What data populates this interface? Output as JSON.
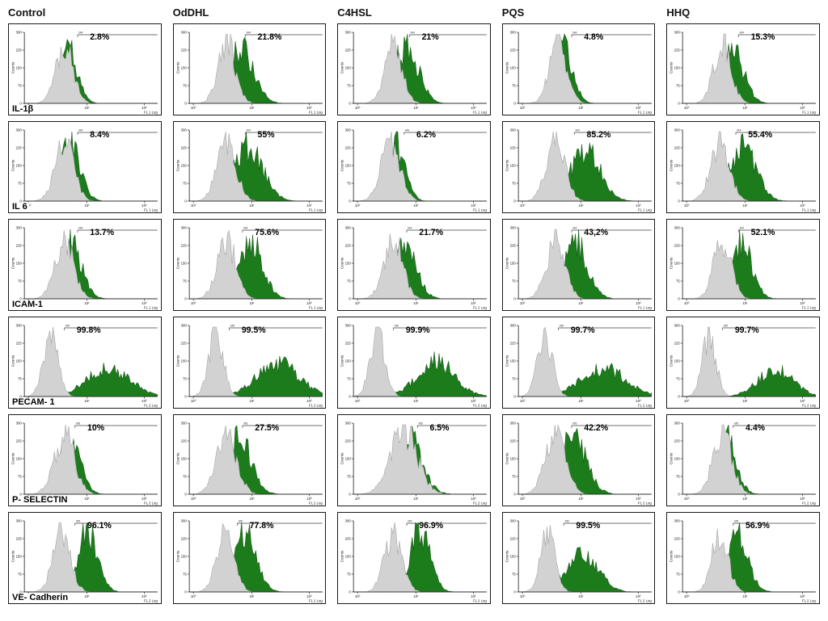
{
  "columns": [
    "Control",
    "OdDHL",
    "C4HSL",
    "PQS",
    "HHQ"
  ],
  "colors": {
    "green_fill": "#1c7c1c",
    "green_stroke": "#0d4f0d",
    "gray_fill": "#d2d2d2",
    "gray_stroke": "#9a9a9a",
    "axis": "#111111",
    "gate": "#444444",
    "panel_border": "#1a1a1a"
  },
  "axes": {
    "ylabel": "Counts",
    "yticks": [
      "300",
      "225",
      "150",
      "75",
      "0"
    ],
    "xticks": [
      "10⁰",
      "10¹",
      "10²"
    ]
  },
  "chart_data": {
    "type": "area",
    "subtype": "flow-cytometry-histogram-overlay-grid",
    "description": "6 markers x 5 treatments; gray = control histogram, green = treated histogram; value = % positive in gate",
    "rows": [
      {
        "label": "IL-1β",
        "marker": "M4",
        "xlabel": "FL 1 Log",
        "panels": [
          {
            "column": "Control",
            "percent": "2.8%",
            "gate": 0.4,
            "gray": {
              "c": 0.3,
              "s": 0.065,
              "h": 0.86
            },
            "green": {
              "c": 0.325,
              "s": 0.07,
              "h": 0.8
            }
          },
          {
            "column": "OdDHL",
            "percent": "21.8%",
            "gate": 0.42,
            "gray": {
              "c": 0.28,
              "s": 0.065,
              "h": 0.86
            },
            "green": {
              "c": 0.385,
              "s": 0.095,
              "h": 0.8
            }
          },
          {
            "column": "C4HSL",
            "percent": "21%",
            "gate": 0.42,
            "gray": {
              "c": 0.3,
              "s": 0.065,
              "h": 0.86
            },
            "green": {
              "c": 0.395,
              "s": 0.09,
              "h": 0.82
            }
          },
          {
            "column": "PQS",
            "percent": "4.8%",
            "gate": 0.4,
            "gray": {
              "c": 0.3,
              "s": 0.065,
              "h": 0.86
            },
            "green": {
              "c": 0.335,
              "s": 0.07,
              "h": 0.8
            }
          },
          {
            "column": "HHQ",
            "percent": "15.3%",
            "gate": 0.42,
            "gray": {
              "c": 0.3,
              "s": 0.065,
              "h": 0.86
            },
            "green": {
              "c": 0.37,
              "s": 0.085,
              "h": 0.8
            }
          }
        ]
      },
      {
        "label": "IL 6",
        "marker": "M4",
        "xlabel": "FL 1 Log",
        "panels": [
          {
            "column": "Control",
            "percent": "8.4%",
            "gate": 0.4,
            "gray": {
              "c": 0.3,
              "s": 0.07,
              "h": 0.86
            },
            "green": {
              "c": 0.345,
              "s": 0.075,
              "h": 0.8
            }
          },
          {
            "column": "OdDHL",
            "percent": "55%",
            "gate": 0.42,
            "gray": {
              "c": 0.28,
              "s": 0.07,
              "h": 0.86
            },
            "green": {
              "c": 0.44,
              "s": 0.11,
              "h": 0.78
            }
          },
          {
            "column": "C4HSL",
            "percent": "6.2%",
            "gate": 0.38,
            "gray": {
              "c": 0.28,
              "s": 0.07,
              "h": 0.88
            },
            "green": {
              "c": 0.315,
              "s": 0.07,
              "h": 0.82
            }
          },
          {
            "column": "PQS",
            "percent": "85.2%",
            "gate": 0.42,
            "gray": {
              "c": 0.28,
              "s": 0.07,
              "h": 0.86
            },
            "green": {
              "c": 0.5,
              "s": 0.11,
              "h": 0.75
            }
          },
          {
            "column": "HHQ",
            "percent": "55.4%",
            "gate": 0.4,
            "gray": {
              "c": 0.28,
              "s": 0.07,
              "h": 0.86
            },
            "green": {
              "c": 0.45,
              "s": 0.1,
              "h": 0.78
            }
          }
        ]
      },
      {
        "label": "ICAM-1",
        "marker": "M4",
        "xlabel": "FL 1 Log",
        "panels": [
          {
            "column": "Control",
            "percent": "13.7%",
            "gate": 0.4,
            "gray": {
              "c": 0.3,
              "s": 0.07,
              "h": 0.85
            },
            "green": {
              "c": 0.35,
              "s": 0.08,
              "h": 0.8
            }
          },
          {
            "column": "OdDHL",
            "percent": "75.6%",
            "gate": 0.4,
            "gray": {
              "c": 0.28,
              "s": 0.07,
              "h": 0.85
            },
            "green": {
              "c": 0.46,
              "s": 0.09,
              "h": 0.82
            }
          },
          {
            "column": "C4HSL",
            "percent": "21.7%",
            "gate": 0.4,
            "gray": {
              "c": 0.3,
              "s": 0.07,
              "h": 0.85
            },
            "green": {
              "c": 0.385,
              "s": 0.085,
              "h": 0.8
            }
          },
          {
            "column": "PQS",
            "percent": "43,2%",
            "gate": 0.4,
            "gray": {
              "c": 0.28,
              "s": 0.07,
              "h": 0.85
            },
            "green": {
              "c": 0.43,
              "s": 0.09,
              "h": 0.8
            }
          },
          {
            "column": "HHQ",
            "percent": "52.1%",
            "gate": 0.42,
            "gray": {
              "c": 0.3,
              "s": 0.065,
              "h": 0.85
            },
            "green": {
              "c": 0.44,
              "s": 0.08,
              "h": 0.8
            }
          }
        ]
      },
      {
        "label": "PECAM- 1",
        "marker": "M5",
        "xlabel": "FL 2 Log",
        "panels": [
          {
            "column": "Control",
            "percent": "99.8%",
            "gate": 0.3,
            "gray": {
              "c": 0.2,
              "s": 0.055,
              "h": 0.9
            },
            "green": {
              "c": 0.63,
              "s": 0.155,
              "h": 0.42
            }
          },
          {
            "column": "OdDHL",
            "percent": "99.5%",
            "gate": 0.3,
            "gray": {
              "c": 0.2,
              "s": 0.055,
              "h": 0.9
            },
            "green": {
              "c": 0.66,
              "s": 0.16,
              "h": 0.48
            }
          },
          {
            "column": "C4HSL",
            "percent": "99.9%",
            "gate": 0.3,
            "gray": {
              "c": 0.18,
              "s": 0.055,
              "h": 0.92
            },
            "green": {
              "c": 0.62,
              "s": 0.14,
              "h": 0.5
            }
          },
          {
            "column": "PQS",
            "percent": "99.7%",
            "gate": 0.3,
            "gray": {
              "c": 0.2,
              "s": 0.055,
              "h": 0.88
            },
            "green": {
              "c": 0.64,
              "s": 0.17,
              "h": 0.4
            }
          },
          {
            "column": "HHQ",
            "percent": "99.7%",
            "gate": 0.3,
            "gray": {
              "c": 0.2,
              "s": 0.05,
              "h": 0.88
            },
            "green": {
              "c": 0.7,
              "s": 0.13,
              "h": 0.38
            }
          }
        ]
      },
      {
        "label": "P- SELECTIN",
        "marker": "M5",
        "xlabel": "FL 2 Log",
        "panels": [
          {
            "column": "Control",
            "percent": "10%",
            "gate": 0.38,
            "gray": {
              "c": 0.3,
              "s": 0.075,
              "h": 0.86
            },
            "green": {
              "c": 0.335,
              "s": 0.08,
              "h": 0.82
            }
          },
          {
            "column": "OdDHL",
            "percent": "27.5%",
            "gate": 0.4,
            "gray": {
              "c": 0.28,
              "s": 0.075,
              "h": 0.86
            },
            "green": {
              "c": 0.375,
              "s": 0.09,
              "h": 0.82
            }
          },
          {
            "column": "C4HSL",
            "percent": "6.5%",
            "gate": 0.48,
            "gray": {
              "c": 0.38,
              "s": 0.1,
              "h": 0.9
            },
            "green": {
              "c": 0.41,
              "s": 0.1,
              "h": 0.86
            }
          },
          {
            "column": "PQS",
            "percent": "42.2%",
            "gate": 0.4,
            "gray": {
              "c": 0.28,
              "s": 0.075,
              "h": 0.86
            },
            "green": {
              "c": 0.41,
              "s": 0.1,
              "h": 0.8
            }
          },
          {
            "column": "HHQ",
            "percent": "4.4%",
            "gate": 0.38,
            "gray": {
              "c": 0.3,
              "s": 0.07,
              "h": 0.86
            },
            "green": {
              "c": 0.325,
              "s": 0.075,
              "h": 0.82
            }
          }
        ]
      },
      {
        "label": "VE- Cadherin",
        "marker": "M5",
        "xlabel": "FL 2 Log",
        "panels": [
          {
            "column": "Control",
            "percent": "96.1%",
            "gate": 0.38,
            "gray": {
              "c": 0.28,
              "s": 0.065,
              "h": 0.86
            },
            "green": {
              "c": 0.475,
              "s": 0.075,
              "h": 0.85
            }
          },
          {
            "column": "OdDHL",
            "percent": "77.8%",
            "gate": 0.36,
            "gray": {
              "c": 0.27,
              "s": 0.065,
              "h": 0.86
            },
            "green": {
              "c": 0.42,
              "s": 0.085,
              "h": 0.85
            }
          },
          {
            "column": "C4HSL",
            "percent": "96.9%",
            "gate": 0.4,
            "gray": {
              "c": 0.3,
              "s": 0.065,
              "h": 0.86
            },
            "green": {
              "c": 0.5,
              "s": 0.075,
              "h": 0.88
            }
          },
          {
            "column": "PQS",
            "percent": "99.5%",
            "gate": 0.34,
            "gray": {
              "c": 0.22,
              "s": 0.055,
              "h": 0.82
            },
            "green": {
              "c": 0.48,
              "s": 0.115,
              "h": 0.58
            }
          },
          {
            "column": "HHQ",
            "percent": "56.9%",
            "gate": 0.38,
            "gray": {
              "c": 0.28,
              "s": 0.06,
              "h": 0.86
            },
            "green": {
              "c": 0.41,
              "s": 0.08,
              "h": 0.85
            }
          }
        ]
      }
    ]
  }
}
